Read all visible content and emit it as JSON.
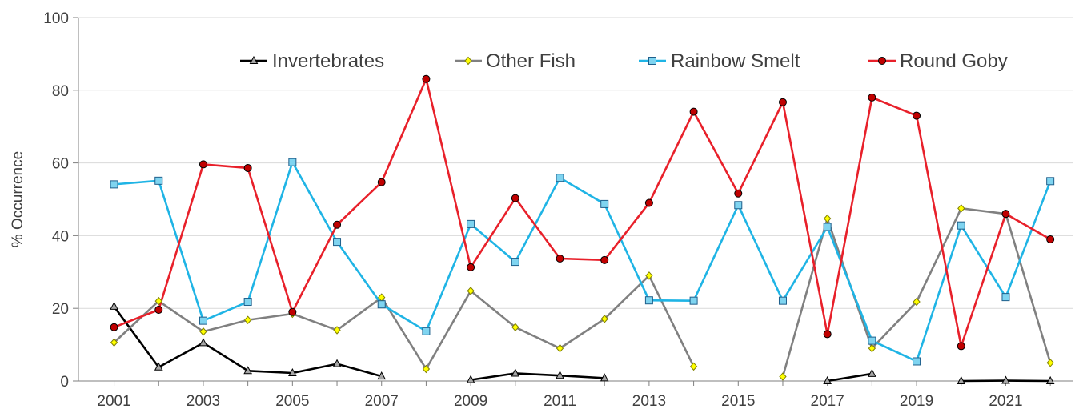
{
  "chart_data": {
    "type": "line",
    "title": "",
    "xlabel": "",
    "ylabel": "% Occurrence",
    "ylim": [
      0,
      100
    ],
    "yticks": [
      0,
      20,
      40,
      60,
      80,
      100
    ],
    "xticks": [
      2001,
      2003,
      2005,
      2007,
      2009,
      2011,
      2013,
      2015,
      2017,
      2019,
      2021
    ],
    "xlim": [
      2000.2,
      2022.5
    ],
    "grid": "horizontal",
    "legend_position": "top",
    "x": [
      2001,
      2002,
      2003,
      2004,
      2005,
      2006,
      2007,
      2008,
      2009,
      2010,
      2011,
      2012,
      2013,
      2014,
      2015,
      2016,
      2017,
      2018,
      2019,
      2020,
      2021,
      2022
    ],
    "series": [
      {
        "name": "Invertebrates",
        "color": "#000000",
        "marker_fill": "#a6a6a6",
        "marker": "triangle",
        "values": [
          20.5,
          3.8,
          10.5,
          2.8,
          2.2,
          4.7,
          1.3,
          null,
          0.3,
          2.1,
          1.5,
          0.8,
          null,
          null,
          null,
          null,
          0,
          2,
          null,
          0,
          0.1,
          0
        ]
      },
      {
        "name": "Other Fish",
        "color": "#808080",
        "marker_fill": "#ffff00",
        "marker": "diamond",
        "values": [
          10.6,
          22,
          13.6,
          16.8,
          18.5,
          14,
          23,
          3.3,
          24.8,
          14.8,
          9,
          17.1,
          29,
          4,
          null,
          1.2,
          44.7,
          9,
          21.8,
          47.5,
          46,
          5
        ]
      },
      {
        "name": "Rainbow Smelt",
        "color": "#1fb4e5",
        "marker_fill": "#7fd4f0",
        "marker": "square",
        "values": [
          54.1,
          55.1,
          16.6,
          21.8,
          60.2,
          38.3,
          21.1,
          13.7,
          43.2,
          32.8,
          55.9,
          48.7,
          22.2,
          22.1,
          48.4,
          22.1,
          42.4,
          11.1,
          5.4,
          42.8,
          23.1,
          55
        ]
      },
      {
        "name": "Round Goby",
        "color": "#e8202a",
        "marker_fill": "#c00000",
        "marker": "circle",
        "values": [
          14.8,
          19.6,
          59.6,
          58.6,
          19,
          43,
          54.7,
          83.1,
          31.3,
          50.3,
          33.7,
          33.3,
          49,
          74.1,
          51.6,
          76.7,
          12.9,
          78,
          73,
          9.6,
          46,
          39
        ]
      }
    ]
  }
}
